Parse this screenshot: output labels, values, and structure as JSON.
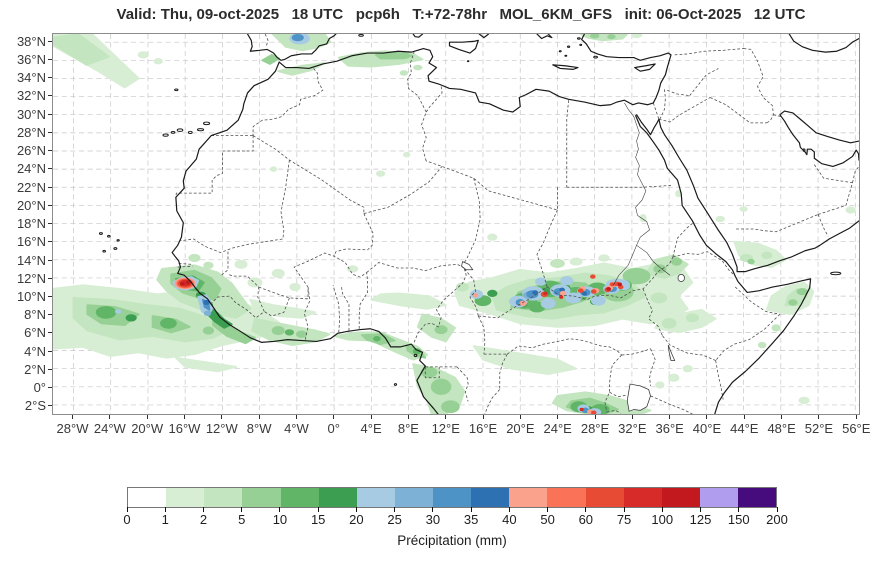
{
  "title": "Valid: Thu, 09-oct-2025   18 UTC   pcp6h   T:+72-78hr   MOL_6KM_GFS   init: 06-Oct-2025   12 UTC",
  "map": {
    "x_axis": {
      "labels": [
        "28°W",
        "24°W",
        "20°W",
        "16°W",
        "12°W",
        "8°W",
        "4°W",
        "0°",
        "4°E",
        "8°E",
        "12°E",
        "16°E",
        "20°E",
        "24°E",
        "28°E",
        "32°E",
        "36°E",
        "40°E",
        "44°E",
        "48°E",
        "52°E",
        "56°E"
      ],
      "values": [
        -28,
        -24,
        -20,
        -16,
        -12,
        -8,
        -4,
        0,
        4,
        8,
        12,
        16,
        20,
        24,
        28,
        32,
        36,
        40,
        44,
        48,
        52,
        56
      ]
    },
    "y_axis": {
      "labels": [
        "38°N",
        "36°N",
        "34°N",
        "32°N",
        "30°N",
        "28°N",
        "26°N",
        "24°N",
        "22°N",
        "20°N",
        "18°N",
        "16°N",
        "14°N",
        "12°N",
        "10°N",
        "8°N",
        "6°N",
        "4°N",
        "2°N",
        "0°",
        "2°S"
      ],
      "values": [
        38,
        36,
        34,
        32,
        30,
        28,
        26,
        24,
        22,
        20,
        18,
        16,
        14,
        12,
        10,
        8,
        6,
        4,
        2,
        0,
        -2
      ]
    },
    "extent": {
      "lon_min": -30.2,
      "lon_max": 56.4,
      "lat_min": -3.0,
      "lat_max": 38.9
    }
  },
  "legend": {
    "label": "Précipitation (mm)",
    "tick_labels": [
      "0",
      "1",
      "2",
      "5",
      "10",
      "15",
      "20",
      "25",
      "30",
      "35",
      "40",
      "50",
      "60",
      "75",
      "100",
      "125",
      "150",
      "200"
    ],
    "colors": [
      "#ffffff",
      "#d7eed4",
      "#c3e5bf",
      "#97d094",
      "#60b567",
      "#3b9e50",
      "#a7cbe2",
      "#7db1d5",
      "#4e93c6",
      "#2d71b2",
      "#fba28c",
      "#fa7257",
      "#e74b33",
      "#d62b28",
      "#c2191f",
      "#b19ded",
      "#460c7e"
    ]
  },
  "chart_data": {
    "type": "heatmap",
    "title": "Valid: Thu, 09-oct-2025 18 UTC pcp6h T:+72-78hr MOL_6KM_GFS init: 06-Oct-2025 12 UTC",
    "parameter": "pcp6h",
    "valid": "Thu, 09-oct-2025 18 UTC",
    "lead_time": "T:+72-78hr",
    "model": "MOL_6KM_GFS",
    "init": "06-Oct-2025 12 UTC",
    "colorbar_label": "Précipitation (mm)",
    "levels_mm": [
      0,
      1,
      2,
      5,
      10,
      15,
      20,
      25,
      30,
      35,
      40,
      50,
      60,
      75,
      100,
      125,
      150,
      200
    ],
    "xlabel_type": "longitude",
    "ylabel_type": "latitude",
    "x_range_deg": [
      -30.2,
      56.4
    ],
    "y_range_deg": [
      -3.0,
      38.9
    ],
    "grid": true,
    "features": [
      "Heavy precipitation core (75-125 mm) on Guinea/Senegal coast near 16W 11N ringed by 40-60 mm and 20-25 mm",
      "Blue 25-40 mm cell offshore Sierra Leone near 13.5W 9N",
      "Broad light-green ITCZ band over the Atlantic 30W-5W between 4N and 11N",
      "Large green band 14E-38E 7N-13N over Chad/CAR/South Sudan with many 20-40 mm blue cells and scattered 50-125 mm red cells",
      "Convective cluster with blue and red cells near 26-29E 2-3S at bottom edge",
      "Green/blue cell over Alboran Sea near Gibraltar, green streaks over northern Algeria and Turkey",
      "Light green patches over Gulf of Guinea coast, Cameroon/Gabon, Ethiopia, Yemen and northeastern Somalia"
    ]
  }
}
